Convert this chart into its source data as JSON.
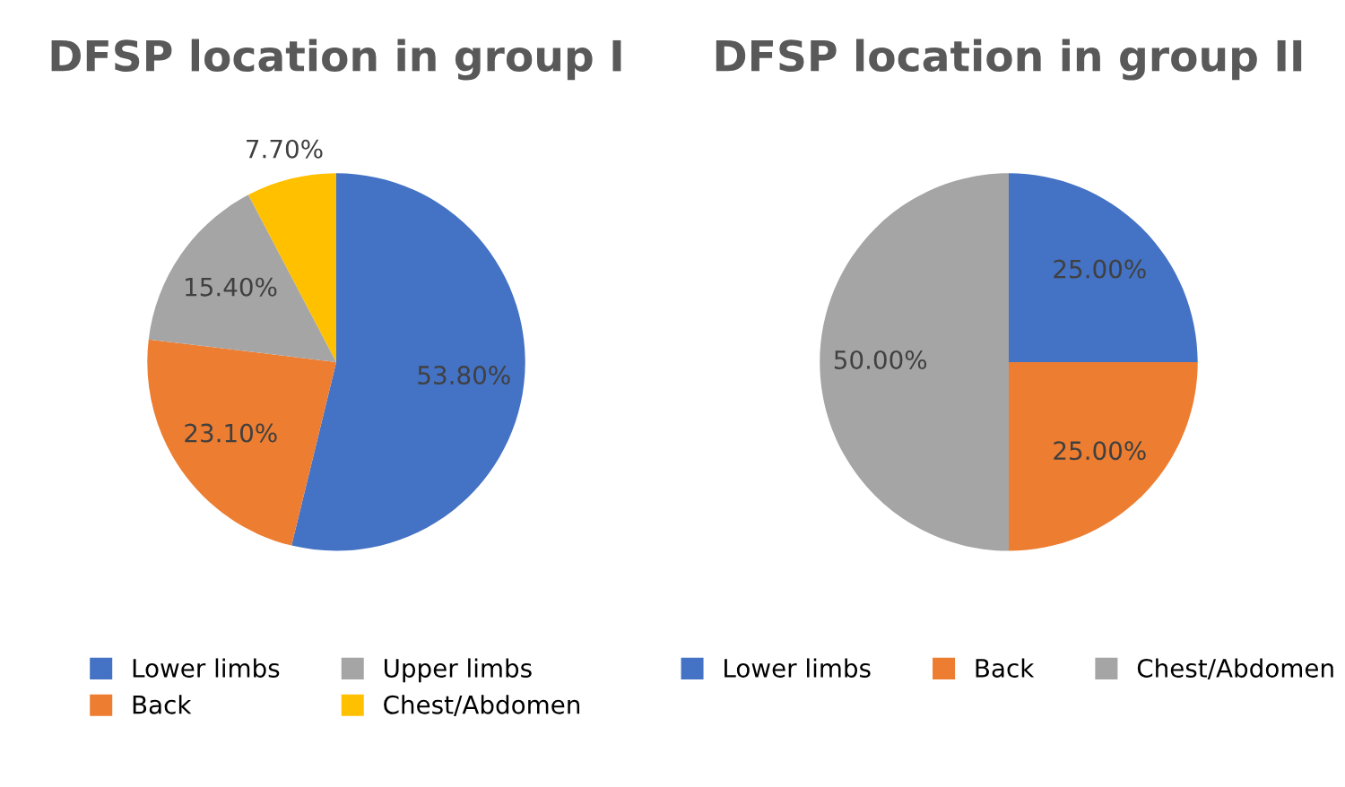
{
  "chart_data": [
    {
      "type": "pie",
      "title": "DFSP location in group I",
      "categories": [
        "Lower limbs",
        "Back",
        "Upper limbs",
        "Chest/Abdomen"
      ],
      "values": [
        53.8,
        23.1,
        15.4,
        7.7
      ],
      "value_labels": [
        "53.80%",
        "23.10%",
        "15.40%",
        "7.70%"
      ],
      "colors": [
        "#4472c4",
        "#ed7d31",
        "#a5a5a5",
        "#ffc000"
      ],
      "legend": "bottom"
    },
    {
      "type": "pie",
      "title": "DFSP location in group II",
      "categories": [
        "Lower limbs",
        "Back",
        "Chest/Abdomen"
      ],
      "values": [
        25,
        25,
        50
      ],
      "value_labels": [
        "25.00%",
        "25.00%",
        "50.00%"
      ],
      "colors": [
        "#4472c4",
        "#ed7d31",
        "#a5a5a5"
      ],
      "legend": "bottom"
    }
  ]
}
